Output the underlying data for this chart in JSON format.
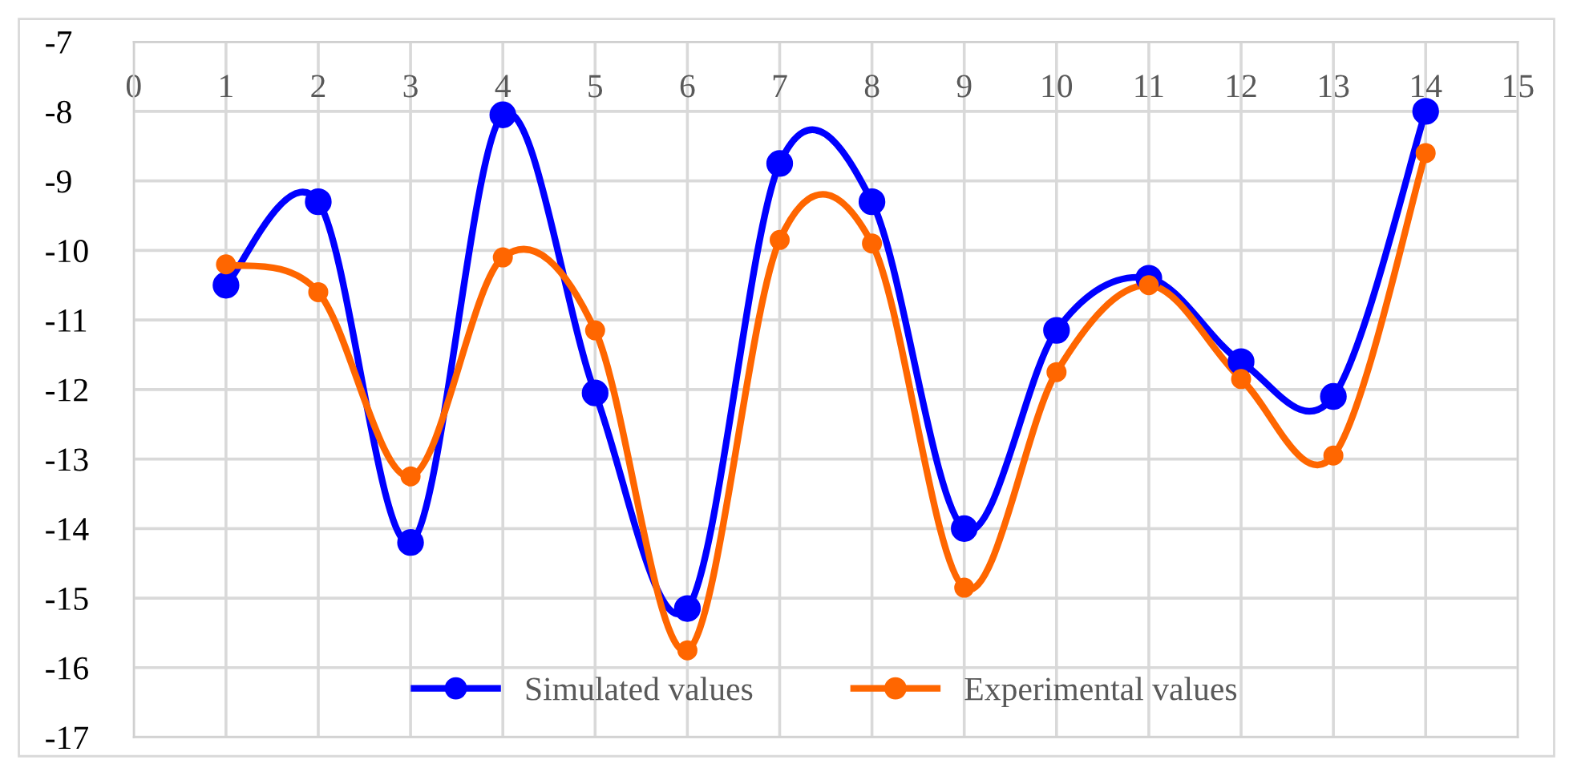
{
  "chart_data": {
    "type": "line",
    "x": [
      1,
      2,
      3,
      4,
      5,
      6,
      7,
      8,
      9,
      10,
      11,
      12,
      13,
      14
    ],
    "series": [
      {
        "name": "Simulated values",
        "color": "#0000ff",
        "values": [
          -10.5,
          -9.3,
          -14.2,
          -8.05,
          -12.05,
          -15.15,
          -8.75,
          -9.3,
          -14.0,
          -11.15,
          -10.4,
          -11.6,
          -12.1,
          -8.0
        ]
      },
      {
        "name": "Experimental values",
        "color": "#ff6600",
        "values": [
          -10.2,
          -10.6,
          -13.25,
          -10.1,
          -11.15,
          -15.75,
          -9.85,
          -9.9,
          -14.85,
          -11.75,
          -10.5,
          -11.85,
          -12.95,
          -8.6
        ]
      }
    ],
    "xlim": [
      0,
      15
    ],
    "xticks": [
      0,
      1,
      2,
      3,
      4,
      5,
      6,
      7,
      8,
      9,
      10,
      11,
      12,
      13,
      14,
      15
    ],
    "ylim": [
      -17,
      -7
    ],
    "yticks": [
      -17,
      -16,
      -15,
      -14,
      -13,
      -12,
      -11,
      -10,
      -9,
      -8,
      -7
    ],
    "grid": true,
    "legend": "bottom",
    "marker": "circle",
    "line_style": "solid"
  }
}
